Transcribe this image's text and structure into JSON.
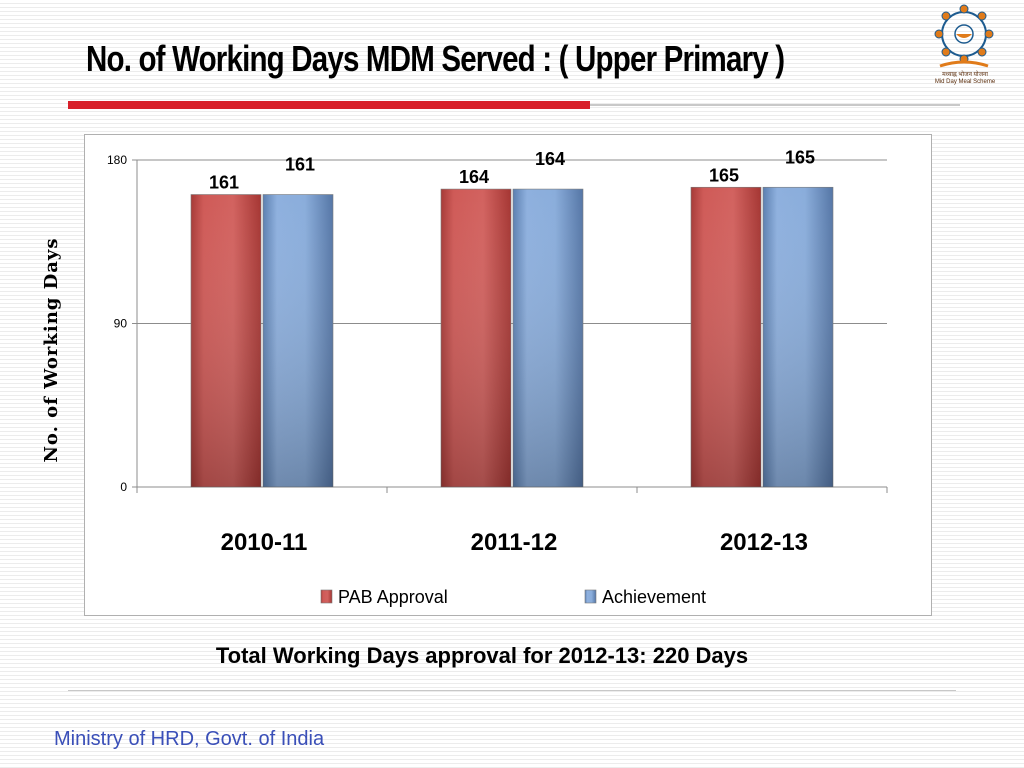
{
  "slide": {
    "title": "No. of Working Days MDM Served : ( Upper Primary )",
    "subtitle": "Total Working Days approval for 2012-13: 220 Days",
    "footer": "Ministry of HRD, Govt. of India",
    "logo_text_line1": "मध्याह्न भोजन योजना",
    "logo_text_line2": "Mid Day Meal Scheme"
  },
  "colors": {
    "title_rule": "#d8202a",
    "footer_text": "#3a4fb8",
    "pab_approval": "#c0504d",
    "achievement": "#4f81bd"
  },
  "chart_data": {
    "type": "bar",
    "title": "",
    "xlabel": "",
    "ylabel": "No. of Working Days",
    "categories": [
      "2010-11",
      "2011-12",
      "2012-13"
    ],
    "series": [
      {
        "name": "PAB Approval",
        "values": [
          161,
          164,
          165
        ],
        "color": "#c0504d"
      },
      {
        "name": "Achievement",
        "values": [
          161,
          164,
          165
        ],
        "color": "#4f81bd"
      }
    ],
    "ylim": [
      0,
      180
    ],
    "yticks": [
      "0",
      "90",
      "180"
    ],
    "grid": true,
    "legend_position": "bottom",
    "data_labels": true
  }
}
